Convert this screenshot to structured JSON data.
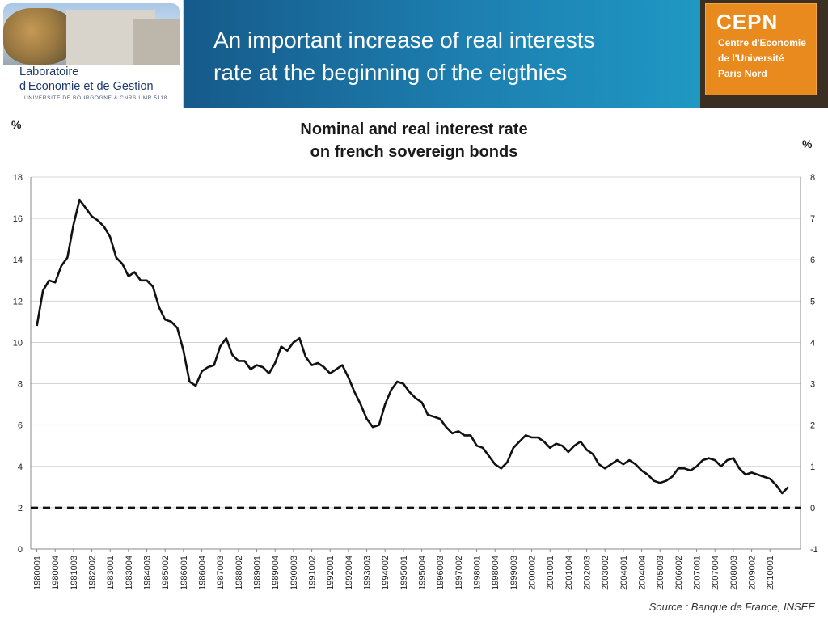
{
  "banner": {
    "title_line1": "An important increase of real interests",
    "title_line2": "rate at the beginning of the eigthies"
  },
  "logo_left": {
    "name_line1": "Laboratoire",
    "name_line2": "d'Economie et de Gestion",
    "subline": "UNIVERSITÉ DE BOURGOGNE & CNRS UMR 5118"
  },
  "logo_right": {
    "name": "CEPN",
    "line1": "Centre d'Economie",
    "line2": "de l'Université",
    "line3": "Paris Nord"
  },
  "colors": {
    "nominal": "#111111",
    "real": "#2aa9d6",
    "banner": "#1a6f9c",
    "cepn": "#e98a1e"
  },
  "chart_data": {
    "type": "line",
    "title_line1": "Nominal and real interest rate",
    "title_line2": "on french sovereign bonds",
    "left_unit": "%",
    "right_unit": "%",
    "source": "Source : Banque de France, INSEE",
    "ylim_left": [
      0,
      18
    ],
    "ylim_right": [
      -1,
      8
    ],
    "y_ticks_left": [
      0,
      2,
      4,
      6,
      8,
      10,
      12,
      14,
      16,
      18
    ],
    "y_ticks_right": [
      -1,
      0,
      1,
      2,
      3,
      4,
      5,
      6,
      7,
      8
    ],
    "grid": true,
    "x_tick_labels": [
      "1980001",
      "1980004",
      "1981003",
      "1982002",
      "1983001",
      "1983004",
      "1984003",
      "1985002",
      "1986001",
      "1986004",
      "1987003",
      "1988002",
      "1989001",
      "1989004",
      "1990003",
      "1991002",
      "1992001",
      "1992004",
      "1993003",
      "1994002",
      "1995001",
      "1995004",
      "1996003",
      "1997002",
      "1998001",
      "1998004",
      "1999003",
      "2000002",
      "2001001",
      "2001004",
      "2002003",
      "2003002",
      "2004001",
      "2004004",
      "2005003",
      "2006002",
      "2007001",
      "2007004",
      "2008003",
      "2009002",
      "2010001"
    ],
    "reference_line": {
      "axis": "right",
      "value": 0,
      "style": "dashed"
    },
    "series": [
      {
        "axis": "left",
        "values": [
          10.8,
          12.5,
          13.0,
          12.9,
          13.7,
          14.1,
          15.7,
          16.9,
          16.5,
          16.1,
          15.9,
          15.6,
          15.1,
          14.1,
          13.8,
          13.2,
          13.4,
          13.0,
          13.0,
          12.7,
          11.7,
          11.1,
          11.0,
          10.7,
          9.6,
          8.1,
          7.9,
          8.6,
          8.8,
          8.9,
          9.8,
          10.2,
          9.4,
          9.1,
          9.1,
          8.7,
          8.9,
          8.8,
          8.5,
          9.0,
          9.8,
          9.6,
          10.0,
          10.2,
          9.3,
          8.9,
          9.0,
          8.8,
          8.5,
          8.7,
          8.9,
          8.3,
          7.6,
          7.0,
          6.3,
          5.9,
          6.0,
          7.0,
          7.7,
          8.1,
          8.0,
          7.6,
          7.3,
          7.1,
          6.5,
          6.4,
          6.3,
          5.9,
          5.6,
          5.7,
          5.5,
          5.5,
          5.0,
          4.9,
          4.5,
          4.1,
          3.9,
          4.2,
          4.9,
          5.2,
          5.5,
          5.4,
          5.4,
          5.2,
          4.9,
          5.1,
          5.0,
          4.7,
          5.0,
          5.2,
          4.8,
          4.6,
          4.1,
          3.9,
          4.1,
          4.3,
          4.1,
          4.3,
          4.1,
          3.8,
          3.6,
          3.3,
          3.2,
          3.3,
          3.5,
          3.9,
          3.9,
          3.8,
          4.0,
          4.3,
          4.4,
          4.3,
          4.0,
          4.3,
          4.4,
          3.9,
          3.6,
          3.7,
          3.6,
          3.5,
          3.4,
          3.1,
          2.7,
          3.0
        ]
      },
      {
        "axis": "right",
        "values": [
          null,
          null,
          null,
          null,
          null,
          null,
          null,
          null,
          null,
          null,
          null,
          null,
          null,
          null,
          null,
          null,
          null,
          null,
          null,
          null,
          null,
          null,
          null,
          null,
          null,
          null,
          null,
          null,
          null,
          null,
          null,
          null,
          null,
          null,
          null,
          null,
          null,
          null,
          null,
          null,
          null,
          null,
          null,
          null,
          null,
          null,
          null,
          null,
          null,
          null,
          null,
          null,
          null,
          null,
          null,
          null,
          null,
          null,
          null,
          null,
          null,
          null,
          null,
          null,
          null,
          null,
          null,
          null,
          null,
          null,
          null,
          null,
          null,
          null,
          null,
          null,
          null,
          null,
          null,
          null,
          null,
          null,
          null,
          null,
          null,
          null,
          null,
          null,
          null,
          null,
          null,
          null,
          null,
          null,
          null,
          null,
          null,
          null,
          null,
          null,
          null,
          null,
          null,
          null,
          null,
          null,
          null,
          null,
          null,
          null,
          null,
          null,
          null,
          null,
          null,
          null,
          null,
          null,
          null,
          null,
          null,
          null,
          null,
          null,
          null
        ]
      }
    ]
  }
}
